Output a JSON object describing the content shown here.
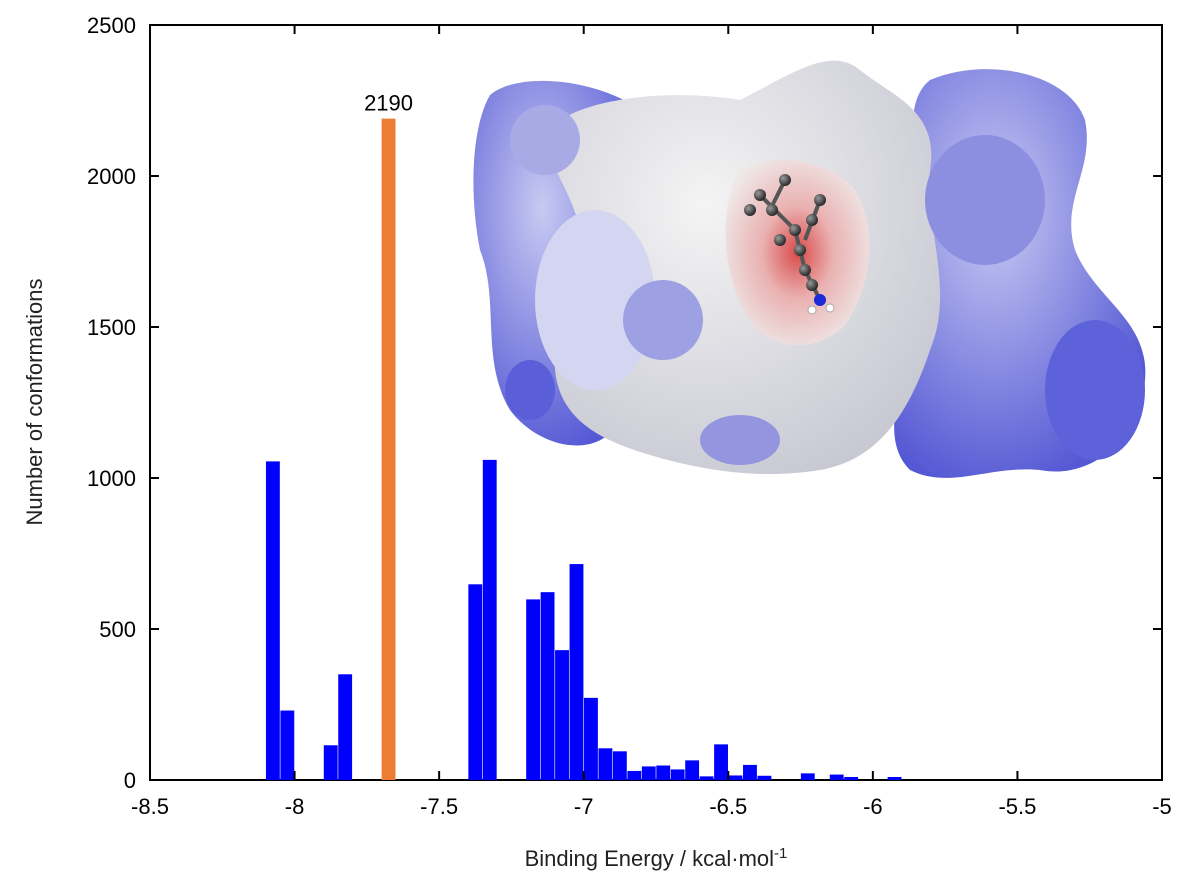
{
  "chart_data": {
    "type": "bar",
    "xlabel_main": "Binding Energy / kcal·mol",
    "xlabel_sup": "-1",
    "ylabel": "Number of conformations",
    "xlim": [
      -8.5,
      -5
    ],
    "ylim": [
      0,
      2500
    ],
    "xticks": [
      -8.5,
      -8,
      -7.5,
      -7,
      -6.5,
      -6,
      -5.5,
      -5
    ],
    "xtick_labels": [
      "-8.5",
      "-8",
      "-7.5",
      "-7",
      "-6.5",
      "-6",
      "-5.5",
      "-5"
    ],
    "yticks": [
      0,
      500,
      1000,
      1500,
      2000,
      2500
    ],
    "ytick_labels": [
      "0",
      "500",
      "1000",
      "1500",
      "2000",
      "2500"
    ],
    "bin_width": 0.05,
    "colors": {
      "default": "#0000ff",
      "highlight": "#ed7d31"
    },
    "series": [
      {
        "bars": [
          {
            "x": -8.075,
            "value": 1055
          },
          {
            "x": -8.025,
            "value": 230
          },
          {
            "x": -7.875,
            "value": 115
          },
          {
            "x": -7.825,
            "value": 350
          },
          {
            "x": -7.675,
            "value": 2190,
            "highlight": true,
            "label": "2190"
          },
          {
            "x": -7.375,
            "value": 648
          },
          {
            "x": -7.325,
            "value": 1060
          },
          {
            "x": -7.175,
            "value": 598
          },
          {
            "x": -7.125,
            "value": 622
          },
          {
            "x": -7.075,
            "value": 430
          },
          {
            "x": -7.025,
            "value": 715
          },
          {
            "x": -6.975,
            "value": 272
          },
          {
            "x": -6.925,
            "value": 105
          },
          {
            "x": -6.875,
            "value": 95
          },
          {
            "x": -6.825,
            "value": 30
          },
          {
            "x": -6.775,
            "value": 45
          },
          {
            "x": -6.725,
            "value": 48
          },
          {
            "x": -6.675,
            "value": 35
          },
          {
            "x": -6.625,
            "value": 65
          },
          {
            "x": -6.575,
            "value": 12
          },
          {
            "x": -6.525,
            "value": 118
          },
          {
            "x": -6.475,
            "value": 15
          },
          {
            "x": -6.425,
            "value": 50
          },
          {
            "x": -6.375,
            "value": 14
          },
          {
            "x": -6.225,
            "value": 22
          },
          {
            "x": -6.125,
            "value": 18
          },
          {
            "x": -6.075,
            "value": 10
          },
          {
            "x": -5.925,
            "value": 10
          }
        ]
      }
    ]
  },
  "inset_image": {
    "description_icon": "molecular-surface-image",
    "colors": {
      "blue": "#5a5ed8",
      "lightblue": "#b4b6ec",
      "white": "#e6e6e6",
      "red": "#d94a4a"
    }
  }
}
